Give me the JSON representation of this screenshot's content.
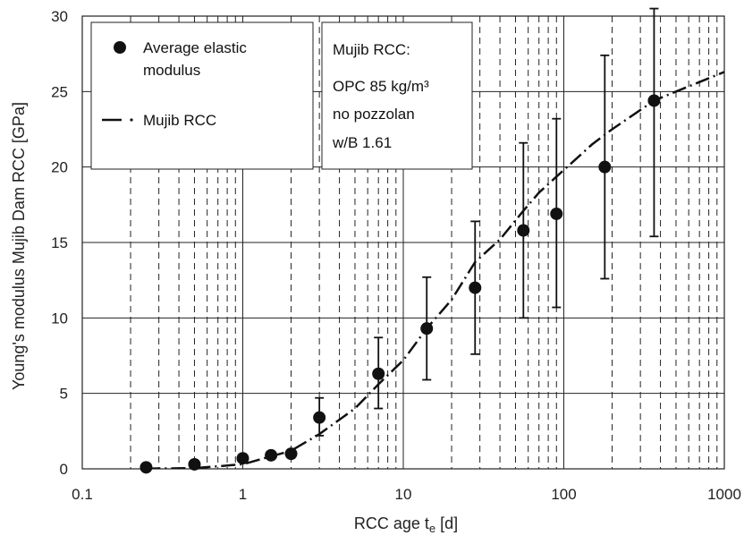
{
  "chart_data": {
    "type": "scatter",
    "xlabel_main": "RCC age t",
    "xlabel_sub": "e",
    "xlabel_unit": " [d]",
    "ylabel": "Young's modulus Mujib Dam RCC [GPa]",
    "x_scale": "log",
    "xlim": [
      0.1,
      1000
    ],
    "ylim": [
      0,
      30
    ],
    "x_ticks": [
      0.1,
      1,
      10,
      100,
      1000
    ],
    "x_tick_labels": [
      "0.1",
      "1",
      "10",
      "100",
      "1000"
    ],
    "y_ticks": [
      0,
      5,
      10,
      15,
      20,
      25,
      30
    ],
    "y_tick_labels": [
      "0",
      "5",
      "10",
      "15",
      "20",
      "25",
      "30"
    ],
    "grid": "major solid, minor dashed vertical",
    "series": [
      {
        "name": "Average elastic modulus",
        "kind": "points",
        "marker": "filled-circle",
        "color": "#111111",
        "x": [
          0.25,
          0.5,
          1,
          1.5,
          2,
          3,
          7,
          14,
          28,
          56,
          90,
          180,
          365
        ],
        "y": [
          0.1,
          0.3,
          0.7,
          0.9,
          1.0,
          3.4,
          6.3,
          9.3,
          12.0,
          15.8,
          16.9,
          20.0,
          24.4
        ],
        "err_low": [
          null,
          null,
          null,
          null,
          null,
          2.2,
          4.0,
          5.9,
          7.6,
          10.0,
          10.7,
          12.6,
          15.4
        ],
        "err_high": [
          null,
          null,
          null,
          null,
          null,
          4.7,
          8.7,
          12.7,
          16.4,
          21.6,
          23.2,
          27.4,
          30.5
        ]
      },
      {
        "name": "Mujib RCC",
        "kind": "line",
        "dash": "dash-dot",
        "color": "#111111",
        "x": [
          0.25,
          0.5,
          1,
          2,
          3,
          5,
          7,
          10,
          14,
          20,
          28,
          40,
          56,
          70,
          100,
          150,
          200,
          365,
          500,
          1000
        ],
        "y": [
          0.02,
          0.05,
          0.3,
          1.2,
          2.3,
          4.0,
          5.6,
          7.2,
          9.3,
          11.2,
          13.7,
          15.2,
          17.1,
          18.3,
          19.8,
          21.5,
          22.5,
          24.4,
          25.0,
          26.3
        ]
      }
    ],
    "legend": {
      "placement": "top-left",
      "entries": [
        "Average elastic",
        "modulus",
        "Mujib RCC"
      ]
    },
    "annotation": {
      "lines": [
        "Mujib RCC:",
        "OPC 85 kg/m³",
        "no pozzolan",
        "w/B 1.61"
      ]
    }
  }
}
